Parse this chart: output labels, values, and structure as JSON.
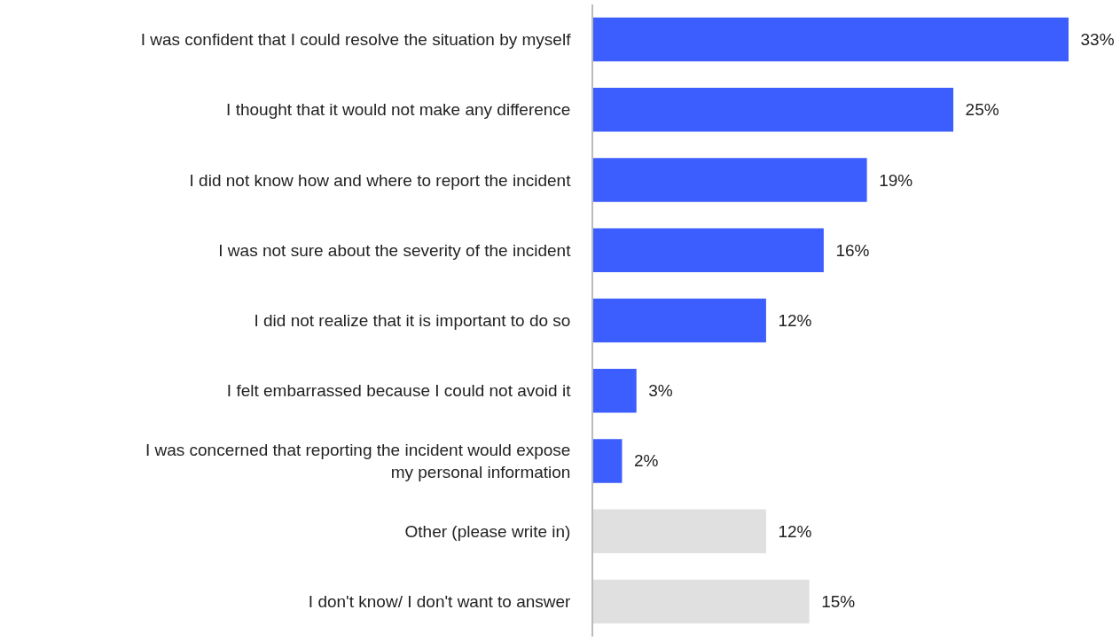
{
  "chart_data": {
    "type": "bar",
    "orientation": "horizontal",
    "categories": [
      "I was confident that I could resolve the situation by myself",
      "I thought that it would not make any difference",
      "I did not know how and where to report the incident",
      "I was not sure about the severity of the incident",
      "I did not realize that it is important to do so",
      "I felt embarrassed because I could not avoid it",
      "I was concerned that reporting the incident would expose\nmy personal information",
      "Other (please write in)",
      "I don't know/ I don't want to answer"
    ],
    "values": [
      33,
      25,
      19,
      16,
      12,
      3,
      2,
      12,
      15
    ],
    "colors": [
      "#3d5efe",
      "#3d5efe",
      "#3d5efe",
      "#3d5efe",
      "#3d5efe",
      "#3d5efe",
      "#3d5efe",
      "#e0e0e0",
      "#e0e0e0"
    ],
    "value_labels": [
      "33%",
      "25%",
      "19%",
      "16%",
      "12%",
      "3%",
      "2%",
      "12%",
      "15%"
    ],
    "grid": false,
    "legend": false
  }
}
